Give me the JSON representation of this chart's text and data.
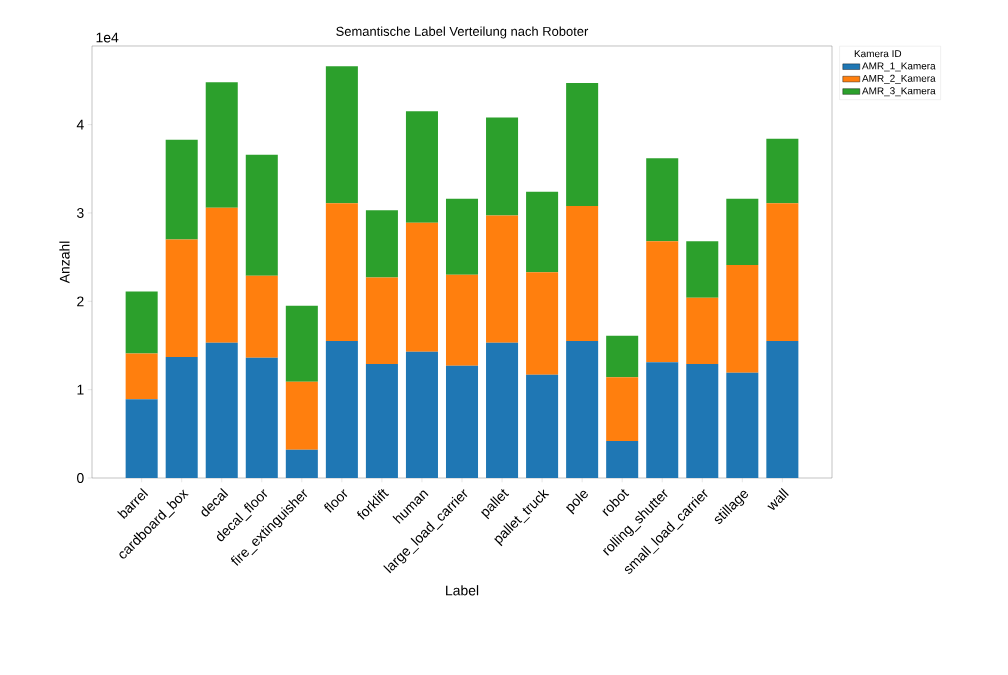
{
  "chart_data": {
    "type": "bar",
    "title": "Semantische Label Verteilung nach Roboter",
    "xlabel": "Label",
    "ylabel": "Anzahl",
    "legend_title": "Kamera ID",
    "annotations": [
      "1e4"
    ],
    "categories": [
      "barrel",
      "cardboard_box",
      "decal",
      "decal_floor",
      "fire_extinguisher",
      "floor",
      "forklift",
      "human",
      "large_load_carrier",
      "pallet",
      "pallet_truck",
      "pole",
      "robot",
      "rolling_shutter",
      "small_load_carrier",
      "stillage",
      "wall"
    ],
    "stacked": true,
    "series": [
      {
        "name": "AMR_1_Kamera",
        "color": "#1f77b4",
        "values": [
          0.89,
          1.37,
          1.53,
          1.36,
          0.32,
          1.55,
          1.29,
          1.43,
          1.27,
          1.53,
          1.17,
          1.55,
          0.42,
          1.31,
          1.29,
          1.19,
          1.55
        ]
      },
      {
        "name": "AMR_2_Kamera",
        "color": "#ff7f0e",
        "values": [
          0.52,
          1.33,
          1.53,
          0.93,
          0.77,
          1.56,
          0.98,
          1.46,
          1.03,
          1.44,
          1.16,
          1.53,
          0.72,
          1.37,
          0.75,
          1.22,
          1.56
        ]
      },
      {
        "name": "AMR_3_Kamera",
        "color": "#2ca02c",
        "values": [
          0.7,
          1.13,
          1.42,
          1.37,
          0.86,
          1.55,
          0.76,
          1.26,
          0.86,
          1.11,
          0.91,
          1.39,
          0.47,
          0.94,
          0.64,
          0.75,
          0.73
        ]
      }
    ],
    "ylim": [
      0,
      4.89
    ],
    "yticks": [
      0,
      1,
      2,
      3,
      4
    ],
    "legend": "right"
  }
}
